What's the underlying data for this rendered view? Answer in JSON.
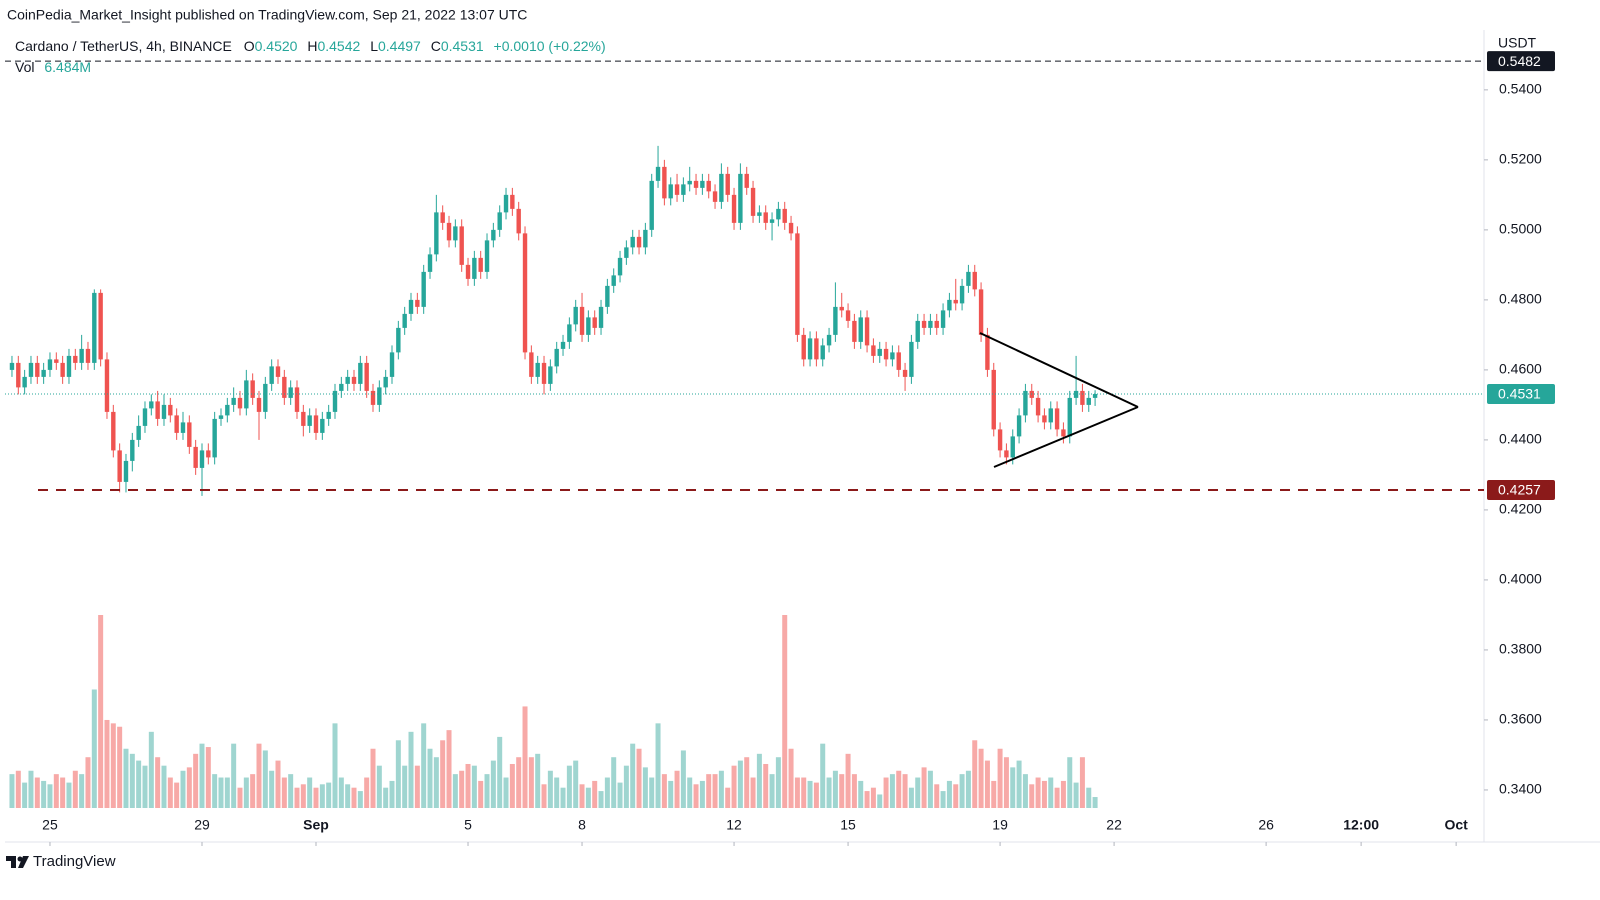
{
  "header": {
    "published": "CoinPedia_Market_Insight published on TradingView.com, Sep 21, 2022 13:07 UTC"
  },
  "chart_data": {
    "type": "candlestick",
    "title": "Cardano / TetherUS, 4h, BINANCE",
    "legend": {
      "open_key": "O",
      "open": "0.4520",
      "high_key": "H",
      "high": "0.4542",
      "low_key": "L",
      "low": "0.4497",
      "close_key": "C",
      "close": "0.4531",
      "change": "+0.0010 (+0.22%)",
      "volume_key": "Vol",
      "volume": "6.484M"
    },
    "y_axis_label": "USDT",
    "ylim": [
      0.3337,
      0.5571
    ],
    "yticks": [
      {
        "value": 0.34,
        "label": "0.3400"
      },
      {
        "value": 0.36,
        "label": "0.3600"
      },
      {
        "value": 0.38,
        "label": "0.3800"
      },
      {
        "value": 0.4,
        "label": "0.4000"
      },
      {
        "value": 0.42,
        "label": "0.4200"
      },
      {
        "value": 0.44,
        "label": "0.4400"
      },
      {
        "value": 0.46,
        "label": "0.4600"
      },
      {
        "value": 0.48,
        "label": "0.4800"
      },
      {
        "value": 0.5,
        "label": "0.5000"
      },
      {
        "value": 0.52,
        "label": "0.5200"
      },
      {
        "value": 0.54,
        "label": "0.5400"
      }
    ],
    "xlim": [
      -1.1,
      232.4
    ],
    "xticks": [
      {
        "value": 6,
        "label": "25"
      },
      {
        "value": 30,
        "label": "29"
      },
      {
        "value": 48,
        "label": "Sep"
      },
      {
        "value": 72,
        "label": "5"
      },
      {
        "value": 90,
        "label": "8"
      },
      {
        "value": 114,
        "label": "12"
      },
      {
        "value": 132,
        "label": "15"
      },
      {
        "value": 156,
        "label": "19"
      },
      {
        "value": 174,
        "label": "22"
      },
      {
        "value": 198,
        "label": "26"
      },
      {
        "value": 213,
        "label": "12:00"
      },
      {
        "value": 228,
        "label": "Oct"
      }
    ],
    "up_color": "#26a69a",
    "down_color": "#ef5350",
    "volume_up_color": "#9fd5d0",
    "volume_down_color": "#f7a9a7",
    "open": [
      0.46,
      0.462,
      0.455,
      0.458,
      0.462,
      0.458,
      0.46,
      0.463,
      0.462,
      0.458,
      0.464,
      0.462,
      0.466,
      0.462,
      0.482,
      0.463,
      0.448,
      0.437,
      0.428,
      0.434,
      0.44,
      0.444,
      0.449,
      0.451,
      0.446,
      0.45,
      0.447,
      0.442,
      0.445,
      0.438,
      0.432,
      0.437,
      0.435,
      0.446,
      0.447,
      0.45,
      0.452,
      0.449,
      0.457,
      0.452,
      0.448,
      0.456,
      0.461,
      0.458,
      0.452,
      0.455,
      0.448,
      0.444,
      0.447,
      0.442,
      0.446,
      0.448,
      0.454,
      0.456,
      0.458,
      0.456,
      0.462,
      0.454,
      0.45,
      0.455,
      0.458,
      0.465,
      0.472,
      0.476,
      0.48,
      0.478,
      0.488,
      0.493,
      0.505,
      0.502,
      0.497,
      0.501,
      0.49,
      0.486,
      0.492,
      0.488,
      0.497,
      0.5,
      0.505,
      0.51,
      0.506,
      0.499,
      0.465,
      0.458,
      0.462,
      0.456,
      0.461,
      0.466,
      0.468,
      0.473,
      0.478,
      0.47,
      0.475,
      0.472,
      0.478,
      0.484,
      0.487,
      0.492,
      0.495,
      0.498,
      0.495,
      0.5,
      0.514,
      0.518,
      0.509,
      0.513,
      0.51,
      0.513,
      0.514,
      0.512,
      0.514,
      0.511,
      0.508,
      0.516,
      0.51,
      0.502,
      0.516,
      0.512,
      0.504,
      0.505,
      0.502,
      0.503,
      0.506,
      0.502,
      0.499,
      0.47,
      0.463,
      0.469,
      0.463,
      0.467,
      0.47,
      0.478,
      0.477,
      0.474,
      0.468,
      0.475,
      0.467,
      0.464,
      0.466,
      0.463,
      0.465,
      0.46,
      0.458,
      0.468,
      0.474,
      0.472,
      0.474,
      0.472,
      0.477,
      0.48,
      0.479,
      0.484,
      0.488,
      0.483,
      0.47,
      0.46,
      0.443,
      0.437,
      0.435,
      0.441,
      0.447,
      0.454,
      0.452,
      0.447,
      0.445,
      0.449,
      0.443,
      0.441,
      0.452,
      0.454,
      0.45,
      0.452
    ],
    "high": [
      0.464,
      0.464,
      0.46,
      0.464,
      0.464,
      0.462,
      0.465,
      0.465,
      0.464,
      0.466,
      0.466,
      0.47,
      0.468,
      0.483,
      0.483,
      0.465,
      0.45,
      0.439,
      0.436,
      0.442,
      0.447,
      0.451,
      0.453,
      0.454,
      0.453,
      0.452,
      0.449,
      0.448,
      0.447,
      0.44,
      0.439,
      0.439,
      0.448,
      0.449,
      0.452,
      0.455,
      0.454,
      0.46,
      0.459,
      0.454,
      0.458,
      0.463,
      0.463,
      0.46,
      0.457,
      0.457,
      0.45,
      0.449,
      0.449,
      0.448,
      0.45,
      0.456,
      0.458,
      0.46,
      0.46,
      0.464,
      0.464,
      0.456,
      0.457,
      0.46,
      0.467,
      0.474,
      0.478,
      0.482,
      0.482,
      0.49,
      0.495,
      0.51,
      0.507,
      0.504,
      0.503,
      0.503,
      0.492,
      0.494,
      0.494,
      0.499,
      0.502,
      0.507,
      0.512,
      0.512,
      0.508,
      0.501,
      0.467,
      0.464,
      0.464,
      0.463,
      0.468,
      0.47,
      0.475,
      0.48,
      0.482,
      0.477,
      0.477,
      0.48,
      0.486,
      0.489,
      0.494,
      0.497,
      0.5,
      0.5,
      0.502,
      0.516,
      0.524,
      0.52,
      0.515,
      0.516,
      0.515,
      0.518,
      0.516,
      0.516,
      0.516,
      0.513,
      0.519,
      0.518,
      0.512,
      0.519,
      0.518,
      0.514,
      0.507,
      0.507,
      0.505,
      0.508,
      0.508,
      0.504,
      0.501,
      0.472,
      0.471,
      0.471,
      0.469,
      0.472,
      0.485,
      0.482,
      0.479,
      0.476,
      0.477,
      0.477,
      0.469,
      0.468,
      0.468,
      0.467,
      0.467,
      0.462,
      0.47,
      0.476,
      0.476,
      0.476,
      0.476,
      0.479,
      0.482,
      0.486,
      0.486,
      0.49,
      0.49,
      0.485,
      0.472,
      0.462,
      0.445,
      0.439,
      0.443,
      0.449,
      0.456,
      0.456,
      0.454,
      0.449,
      0.451,
      0.451,
      0.445,
      0.454,
      0.464,
      0.456,
      0.454,
      0.4542
    ],
    "low": [
      0.458,
      0.453,
      0.453,
      0.456,
      0.456,
      0.456,
      0.458,
      0.46,
      0.456,
      0.456,
      0.46,
      0.46,
      0.46,
      0.46,
      0.461,
      0.446,
      0.435,
      0.425,
      0.425,
      0.431,
      0.438,
      0.442,
      0.447,
      0.444,
      0.444,
      0.445,
      0.44,
      0.44,
      0.436,
      0.43,
      0.424,
      0.433,
      0.433,
      0.444,
      0.445,
      0.448,
      0.447,
      0.447,
      0.45,
      0.44,
      0.446,
      0.454,
      0.456,
      0.45,
      0.45,
      0.446,
      0.441,
      0.442,
      0.44,
      0.44,
      0.444,
      0.446,
      0.452,
      0.454,
      0.454,
      0.454,
      0.452,
      0.448,
      0.448,
      0.453,
      0.456,
      0.463,
      0.47,
      0.474,
      0.476,
      0.476,
      0.486,
      0.491,
      0.5,
      0.495,
      0.495,
      0.488,
      0.484,
      0.484,
      0.486,
      0.486,
      0.495,
      0.498,
      0.503,
      0.504,
      0.497,
      0.463,
      0.456,
      0.456,
      0.453,
      0.454,
      0.459,
      0.464,
      0.466,
      0.471,
      0.468,
      0.468,
      0.47,
      0.47,
      0.476,
      0.482,
      0.485,
      0.49,
      0.493,
      0.493,
      0.493,
      0.498,
      0.512,
      0.507,
      0.507,
      0.508,
      0.508,
      0.511,
      0.51,
      0.51,
      0.509,
      0.506,
      0.506,
      0.508,
      0.5,
      0.5,
      0.51,
      0.502,
      0.502,
      0.5,
      0.497,
      0.501,
      0.5,
      0.497,
      0.468,
      0.461,
      0.461,
      0.461,
      0.461,
      0.465,
      0.468,
      0.475,
      0.472,
      0.466,
      0.466,
      0.465,
      0.462,
      0.462,
      0.461,
      0.461,
      0.458,
      0.454,
      0.456,
      0.466,
      0.47,
      0.47,
      0.47,
      0.47,
      0.475,
      0.477,
      0.477,
      0.482,
      0.481,
      0.468,
      0.458,
      0.441,
      0.435,
      0.433,
      0.433,
      0.439,
      0.445,
      0.45,
      0.445,
      0.443,
      0.443,
      0.441,
      0.439,
      0.439,
      0.45,
      0.448,
      0.448,
      0.4497
    ],
    "close": [
      0.462,
      0.455,
      0.458,
      0.462,
      0.458,
      0.46,
      0.463,
      0.462,
      0.458,
      0.464,
      0.462,
      0.466,
      0.462,
      0.482,
      0.463,
      0.448,
      0.437,
      0.428,
      0.434,
      0.44,
      0.444,
      0.449,
      0.451,
      0.446,
      0.45,
      0.447,
      0.442,
      0.445,
      0.438,
      0.432,
      0.437,
      0.435,
      0.446,
      0.447,
      0.45,
      0.452,
      0.449,
      0.457,
      0.452,
      0.448,
      0.456,
      0.461,
      0.458,
      0.452,
      0.455,
      0.448,
      0.444,
      0.447,
      0.442,
      0.446,
      0.448,
      0.454,
      0.456,
      0.458,
      0.456,
      0.462,
      0.454,
      0.45,
      0.455,
      0.458,
      0.465,
      0.472,
      0.476,
      0.48,
      0.478,
      0.488,
      0.493,
      0.505,
      0.502,
      0.497,
      0.501,
      0.49,
      0.486,
      0.492,
      0.488,
      0.497,
      0.5,
      0.505,
      0.51,
      0.506,
      0.499,
      0.465,
      0.458,
      0.462,
      0.456,
      0.461,
      0.466,
      0.468,
      0.473,
      0.478,
      0.47,
      0.475,
      0.472,
      0.478,
      0.484,
      0.487,
      0.492,
      0.495,
      0.498,
      0.495,
      0.5,
      0.514,
      0.518,
      0.509,
      0.513,
      0.51,
      0.513,
      0.514,
      0.512,
      0.514,
      0.511,
      0.508,
      0.516,
      0.51,
      0.502,
      0.516,
      0.512,
      0.504,
      0.505,
      0.502,
      0.503,
      0.506,
      0.502,
      0.499,
      0.47,
      0.463,
      0.469,
      0.463,
      0.467,
      0.47,
      0.478,
      0.477,
      0.474,
      0.468,
      0.475,
      0.467,
      0.464,
      0.466,
      0.463,
      0.465,
      0.46,
      0.458,
      0.468,
      0.474,
      0.472,
      0.474,
      0.472,
      0.477,
      0.48,
      0.479,
      0.484,
      0.488,
      0.483,
      0.47,
      0.46,
      0.443,
      0.437,
      0.435,
      0.441,
      0.447,
      0.454,
      0.452,
      0.447,
      0.445,
      0.449,
      0.443,
      0.441,
      0.452,
      0.454,
      0.45,
      0.452,
      0.4531
    ],
    "volume": [
      20,
      22,
      15,
      22,
      18,
      16,
      14,
      20,
      18,
      15,
      22,
      20,
      30,
      70,
      114,
      52,
      50,
      48,
      35,
      32,
      28,
      25,
      45,
      30,
      25,
      18,
      15,
      22,
      24,
      32,
      38,
      36,
      20,
      18,
      18,
      38,
      12,
      18,
      20,
      38,
      34,
      22,
      28,
      18,
      20,
      12,
      14,
      18,
      12,
      14,
      15,
      50,
      18,
      14,
      12,
      10,
      18,
      35,
      25,
      12,
      16,
      40,
      25,
      45,
      25,
      50,
      35,
      30,
      40,
      46,
      20,
      22,
      26,
      25,
      16,
      20,
      28,
      42,
      18,
      26,
      30,
      60,
      30,
      32,
      14,
      22,
      18,
      12,
      25,
      28,
      14,
      12,
      16,
      10,
      18,
      30,
      15,
      25,
      38,
      35,
      24,
      18,
      50,
      20,
      16,
      22,
      34,
      18,
      14,
      16,
      20,
      20,
      22,
      12,
      25,
      28,
      30,
      18,
      32,
      26,
      20,
      30,
      114,
      35,
      18,
      18,
      16,
      15,
      38,
      18,
      22,
      20,
      32,
      20,
      16,
      10,
      12,
      8,
      18,
      20,
      22,
      20,
      12,
      18,
      24,
      22,
      14,
      10,
      16,
      14,
      20,
      22,
      40,
      35,
      28,
      16,
      35,
      30,
      24,
      28,
      20,
      14,
      18,
      16,
      18,
      12,
      16,
      30,
      15,
      30,
      12,
      6.484
    ],
    "price_lines": [
      {
        "value": 0.5482,
        "label": "0.5482",
        "color": "#131722",
        "style": "dashed"
      },
      {
        "value": 0.4531,
        "label": "0.4531",
        "color": "#26a69a",
        "style": "dotted"
      },
      {
        "value": 0.4257,
        "label": "0.4257",
        "color": "#8b1a1a",
        "style": "dashed"
      }
    ]
  },
  "footer": {
    "brand": "TradingView"
  }
}
